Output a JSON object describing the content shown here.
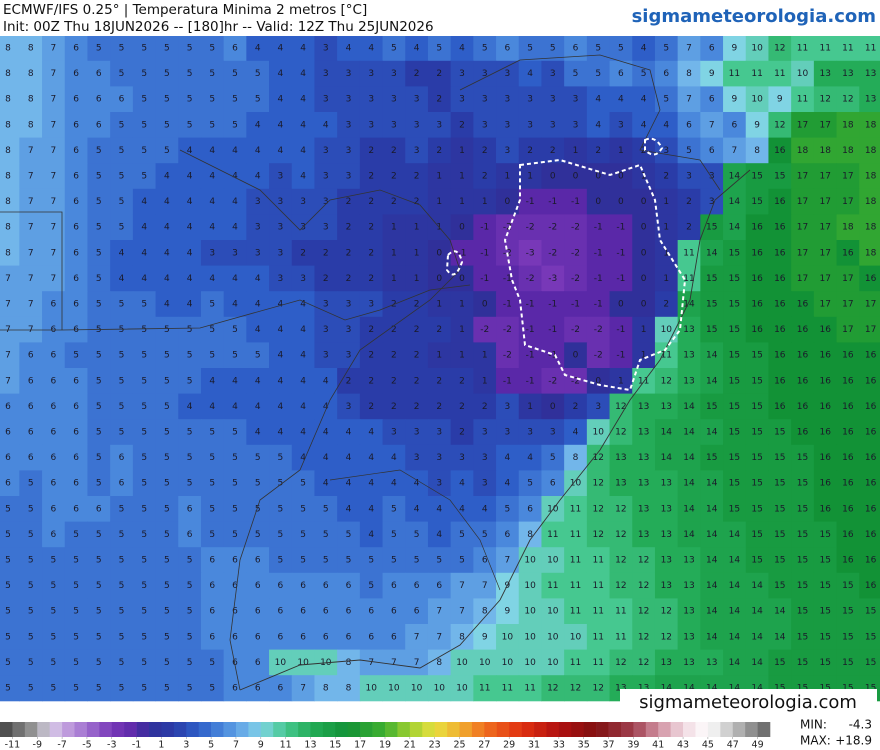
{
  "header": {
    "title": "ECMWF/IFS 0.25° | Temperatura Minima 2 metros [°C]",
    "subtitle": "Init: 00Z Thu 18JUN2026 -- [180]hr -- Valid: 12Z Thu 25JUN2026",
    "site": "sigmameteorologia.com"
  },
  "map": {
    "type": "gridded-values",
    "watermark": "sigmameteorologia.com",
    "rows": [
      [
        8,
        8,
        7,
        6,
        5,
        5,
        5,
        5,
        5,
        5,
        6,
        4,
        4,
        4,
        3,
        4,
        4,
        5,
        4,
        5,
        4,
        5,
        6,
        5,
        5,
        6,
        5,
        5,
        4,
        5,
        7,
        6,
        9,
        10,
        12,
        11,
        11,
        11,
        11
      ],
      [
        8,
        8,
        7,
        6,
        6,
        5,
        5,
        5,
        5,
        5,
        5,
        5,
        4,
        4,
        3,
        3,
        3,
        3,
        2,
        2,
        3,
        3,
        3,
        4,
        3,
        5,
        5,
        6,
        5,
        6,
        8,
        9,
        11,
        11,
        11,
        10,
        13,
        13,
        13
      ],
      [
        8,
        8,
        7,
        6,
        6,
        6,
        5,
        5,
        5,
        5,
        5,
        5,
        4,
        4,
        3,
        3,
        3,
        3,
        3,
        2,
        3,
        3,
        3,
        3,
        3,
        3,
        4,
        4,
        4,
        5,
        7,
        6,
        9,
        10,
        9,
        11,
        12,
        12,
        13
      ],
      [
        8,
        8,
        7,
        6,
        6,
        5,
        5,
        5,
        5,
        5,
        5,
        4,
        4,
        4,
        4,
        3,
        3,
        3,
        3,
        3,
        2,
        3,
        3,
        3,
        3,
        3,
        4,
        3,
        4,
        4,
        6,
        7,
        6,
        9,
        12,
        17,
        17,
        18,
        18
      ],
      [
        8,
        7,
        7,
        6,
        5,
        5,
        5,
        5,
        4,
        4,
        4,
        4,
        4,
        4,
        3,
        3,
        2,
        2,
        3,
        2,
        1,
        2,
        3,
        2,
        2,
        1,
        2,
        1,
        2,
        3,
        5,
        6,
        7,
        8,
        16,
        18,
        18,
        18,
        18
      ],
      [
        8,
        7,
        7,
        6,
        5,
        5,
        5,
        4,
        4,
        4,
        4,
        4,
        3,
        4,
        3,
        3,
        2,
        2,
        2,
        1,
        1,
        2,
        1,
        1,
        0,
        0,
        0,
        0,
        1,
        2,
        3,
        3,
        14,
        15,
        15,
        17,
        17,
        17,
        18
      ],
      [
        8,
        7,
        7,
        6,
        5,
        5,
        4,
        4,
        4,
        4,
        4,
        3,
        3,
        3,
        3,
        2,
        2,
        2,
        2,
        1,
        1,
        1,
        0,
        -1,
        -1,
        -1,
        0,
        0,
        0,
        1,
        2,
        3,
        14,
        15,
        16,
        17,
        17,
        17,
        18
      ],
      [
        8,
        7,
        7,
        6,
        5,
        5,
        4,
        4,
        4,
        4,
        4,
        3,
        3,
        3,
        3,
        2,
        2,
        1,
        1,
        1,
        0,
        -1,
        -2,
        -2,
        -2,
        -2,
        -1,
        -1,
        0,
        1,
        2,
        15,
        14,
        16,
        16,
        17,
        17,
        18,
        18
      ],
      [
        8,
        7,
        7,
        6,
        5,
        4,
        4,
        4,
        4,
        3,
        3,
        3,
        3,
        2,
        2,
        2,
        2,
        1,
        1,
        0,
        -1,
        -1,
        -2,
        -3,
        -2,
        -2,
        -1,
        -1,
        0,
        1,
        11,
        14,
        15,
        16,
        16,
        17,
        17,
        16,
        18
      ],
      [
        7,
        7,
        7,
        6,
        5,
        4,
        4,
        4,
        4,
        4,
        4,
        4,
        3,
        3,
        2,
        2,
        2,
        1,
        1,
        0,
        0,
        -1,
        -1,
        -2,
        -3,
        -2,
        -1,
        -1,
        0,
        1,
        11,
        15,
        15,
        16,
        16,
        17,
        17,
        17,
        16
      ],
      [
        7,
        7,
        6,
        6,
        5,
        5,
        5,
        4,
        4,
        5,
        4,
        4,
        4,
        4,
        3,
        3,
        3,
        2,
        2,
        1,
        1,
        0,
        -1,
        -1,
        -1,
        -1,
        -1,
        0,
        0,
        2,
        14,
        15,
        15,
        16,
        16,
        16,
        17,
        17,
        17
      ],
      [
        7,
        7,
        6,
        6,
        5,
        5,
        5,
        5,
        5,
        5,
        5,
        4,
        4,
        4,
        3,
        3,
        2,
        2,
        2,
        2,
        1,
        -2,
        -2,
        -1,
        -1,
        -2,
        -2,
        -1,
        1,
        10,
        13,
        15,
        15,
        16,
        16,
        16,
        16,
        17,
        17
      ],
      [
        7,
        6,
        6,
        5,
        5,
        5,
        5,
        5,
        5,
        5,
        5,
        5,
        4,
        4,
        3,
        3,
        2,
        2,
        2,
        1,
        1,
        1,
        -2,
        -1,
        -1,
        0,
        -2,
        -1,
        1,
        11,
        13,
        14,
        15,
        15,
        16,
        16,
        16,
        16,
        16
      ],
      [
        7,
        6,
        6,
        6,
        5,
        5,
        5,
        5,
        5,
        4,
        4,
        4,
        4,
        4,
        4,
        2,
        2,
        2,
        2,
        2,
        2,
        1,
        -1,
        -1,
        -2,
        -2,
        0,
        1,
        11,
        12,
        13,
        14,
        15,
        15,
        16,
        16,
        16,
        16,
        16
      ],
      [
        6,
        6,
        6,
        6,
        5,
        5,
        5,
        5,
        4,
        4,
        4,
        4,
        4,
        4,
        4,
        3,
        2,
        2,
        2,
        2,
        2,
        2,
        3,
        1,
        0,
        2,
        3,
        12,
        13,
        13,
        14,
        15,
        15,
        15,
        16,
        16,
        16,
        16,
        16
      ],
      [
        6,
        6,
        6,
        6,
        5,
        5,
        5,
        5,
        5,
        5,
        5,
        4,
        4,
        4,
        4,
        4,
        4,
        3,
        3,
        3,
        2,
        3,
        3,
        3,
        3,
        4,
        10,
        12,
        13,
        14,
        14,
        14,
        15,
        15,
        15,
        16,
        16,
        16,
        16
      ],
      [
        6,
        6,
        6,
        6,
        5,
        6,
        5,
        5,
        5,
        5,
        5,
        5,
        5,
        4,
        4,
        4,
        4,
        4,
        3,
        3,
        3,
        3,
        4,
        4,
        5,
        8,
        12,
        13,
        13,
        14,
        14,
        15,
        15,
        15,
        15,
        15,
        16,
        16,
        16
      ],
      [
        6,
        5,
        6,
        6,
        5,
        6,
        5,
        5,
        5,
        5,
        5,
        5,
        5,
        5,
        4,
        4,
        4,
        4,
        4,
        3,
        4,
        3,
        4,
        5,
        6,
        10,
        12,
        13,
        13,
        13,
        14,
        14,
        15,
        15,
        15,
        15,
        16,
        16,
        16
      ],
      [
        5,
        5,
        6,
        6,
        6,
        5,
        5,
        5,
        6,
        5,
        5,
        5,
        5,
        5,
        5,
        4,
        4,
        5,
        4,
        4,
        4,
        4,
        5,
        6,
        10,
        11,
        12,
        12,
        13,
        13,
        14,
        14,
        15,
        15,
        15,
        15,
        16,
        16,
        16
      ],
      [
        5,
        5,
        6,
        5,
        5,
        5,
        5,
        5,
        6,
        5,
        5,
        5,
        5,
        5,
        5,
        5,
        4,
        5,
        5,
        4,
        5,
        5,
        6,
        8,
        11,
        11,
        12,
        12,
        13,
        13,
        14,
        14,
        14,
        15,
        15,
        15,
        15,
        16,
        16
      ],
      [
        5,
        5,
        5,
        5,
        5,
        5,
        5,
        5,
        5,
        6,
        6,
        6,
        5,
        5,
        5,
        5,
        5,
        5,
        5,
        5,
        5,
        6,
        7,
        10,
        10,
        11,
        11,
        12,
        12,
        13,
        13,
        14,
        14,
        15,
        15,
        15,
        15,
        16,
        16
      ],
      [
        5,
        5,
        5,
        5,
        5,
        5,
        5,
        5,
        5,
        6,
        6,
        6,
        6,
        6,
        6,
        6,
        5,
        6,
        6,
        6,
        7,
        7,
        9,
        10,
        11,
        11,
        11,
        12,
        12,
        13,
        13,
        14,
        14,
        14,
        15,
        15,
        15,
        15,
        16
      ],
      [
        5,
        5,
        5,
        5,
        5,
        5,
        5,
        5,
        5,
        6,
        6,
        6,
        6,
        6,
        6,
        6,
        6,
        6,
        6,
        7,
        7,
        8,
        9,
        10,
        10,
        11,
        11,
        11,
        12,
        12,
        13,
        14,
        14,
        14,
        14,
        15,
        15,
        15,
        15
      ],
      [
        5,
        5,
        5,
        5,
        5,
        5,
        5,
        5,
        5,
        6,
        6,
        6,
        6,
        6,
        6,
        6,
        6,
        6,
        7,
        7,
        8,
        9,
        10,
        10,
        10,
        10,
        11,
        11,
        12,
        12,
        13,
        14,
        14,
        14,
        14,
        15,
        15,
        15,
        15
      ],
      [
        5,
        5,
        5,
        5,
        5,
        5,
        5,
        5,
        5,
        5,
        6,
        6,
        10,
        10,
        10,
        8,
        7,
        7,
        7,
        8,
        10,
        10,
        10,
        10,
        10,
        11,
        11,
        12,
        12,
        13,
        13,
        13,
        14,
        14,
        15,
        15,
        15,
        15,
        15
      ],
      [
        5,
        5,
        5,
        5,
        5,
        5,
        5,
        5,
        5,
        5,
        6,
        6,
        6,
        7,
        8,
        8,
        10,
        10,
        10,
        10,
        10,
        11,
        11,
        11,
        12,
        12,
        12,
        13,
        13,
        14,
        14,
        14,
        14,
        14,
        15,
        15,
        15,
        15,
        15
      ]
    ]
  },
  "colorbar": {
    "lim": [
      -12,
      50
    ],
    "ticks": [
      -11,
      -9,
      -7,
      -5,
      -3,
      -1,
      1,
      3,
      5,
      7,
      9,
      11,
      13,
      15,
      17,
      19,
      21,
      23,
      25,
      27,
      29,
      31,
      33,
      35,
      37,
      39,
      41,
      43,
      45,
      47,
      49
    ],
    "color_stops": [
      [
        -12,
        "#404040"
      ],
      [
        -9,
        "#a0a0a0"
      ],
      [
        -8,
        "#d8d0e8"
      ],
      [
        -7,
        "#c8a8e0"
      ],
      [
        -5,
        "#a070d0"
      ],
      [
        -3,
        "#7838b8"
      ],
      [
        -1,
        "#5a28a8"
      ],
      [
        0,
        "#30309a"
      ],
      [
        2,
        "#2a3ca8"
      ],
      [
        4,
        "#2e5ec8"
      ],
      [
        6,
        "#4a88dc"
      ],
      [
        8,
        "#72b6ea"
      ],
      [
        9,
        "#80d4e4"
      ],
      [
        11,
        "#46c890"
      ],
      [
        13,
        "#24ac58"
      ],
      [
        16,
        "#129236"
      ],
      [
        19,
        "#40b030"
      ],
      [
        21,
        "#a0d030"
      ],
      [
        23,
        "#e8e040"
      ],
      [
        25,
        "#f0b030"
      ],
      [
        27,
        "#f07020"
      ],
      [
        30,
        "#e03010"
      ],
      [
        33,
        "#b01010"
      ],
      [
        36,
        "#801010"
      ],
      [
        39,
        "#a04050"
      ],
      [
        41,
        "#d090a0"
      ],
      [
        43,
        "#f0d8e0"
      ],
      [
        45,
        "#ffffff"
      ],
      [
        47,
        "#c0c0c0"
      ],
      [
        50,
        "#606060"
      ]
    ]
  },
  "stats": {
    "min_label": "MIN:",
    "min_value": -4.3,
    "max_label": "MAX:",
    "max_value": 18.9,
    "max_value_label": "+18.9"
  }
}
